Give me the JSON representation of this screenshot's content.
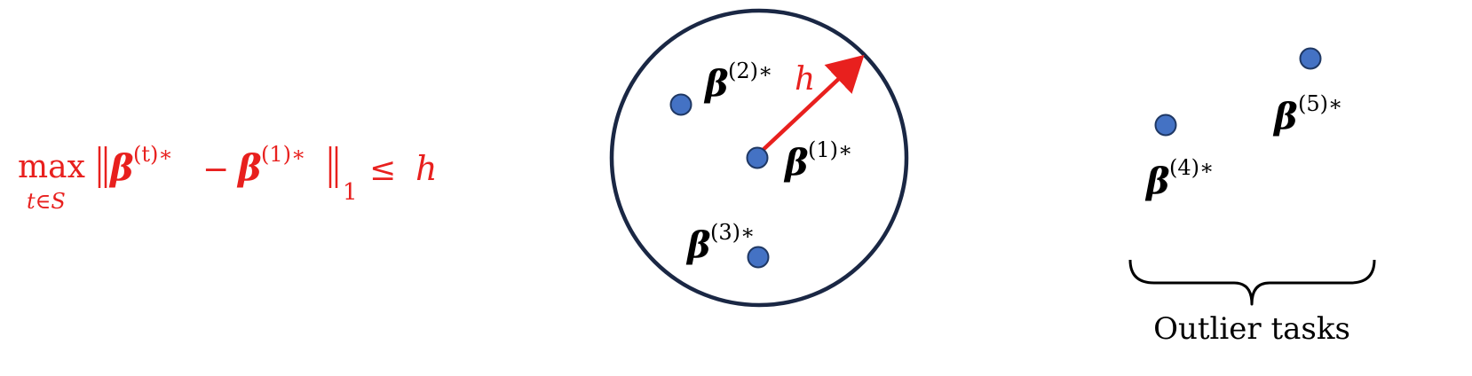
{
  "colors": {
    "circle_stroke": "#1a2744",
    "point_fill": "#4472c4",
    "point_stroke": "#1f3864",
    "accent_red": "#e8201e",
    "text": "#000000"
  },
  "formula": {
    "op_max": "max",
    "op_sub": "t∈S",
    "beta": "β",
    "sup_t": "(t)∗",
    "minus": "−",
    "sup_1": "(1)∗",
    "norm_sub": "1",
    "leq": "≤",
    "bound": "h"
  },
  "radius_label": "h",
  "points": [
    {
      "id": "p1",
      "symbol": "β",
      "sup": "(1)∗"
    },
    {
      "id": "p2",
      "symbol": "β",
      "sup": "(2)∗"
    },
    {
      "id": "p3",
      "symbol": "β",
      "sup": "(3)∗"
    },
    {
      "id": "p4",
      "symbol": "β",
      "sup": "(4)∗"
    },
    {
      "id": "p5",
      "symbol": "β",
      "sup": "(5)∗"
    }
  ],
  "outlier_caption": "Outlier tasks"
}
